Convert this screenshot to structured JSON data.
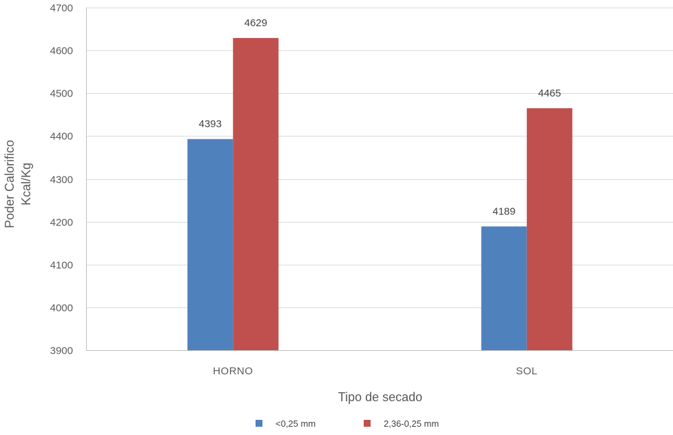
{
  "chart_data": {
    "type": "bar",
    "categories": [
      "HORNO",
      "SOL"
    ],
    "series": [
      {
        "name": "<0,25 mm",
        "values": [
          4393,
          4189
        ],
        "color": "#4f81bd"
      },
      {
        "name": "2,36-0,25 mm",
        "values": [
          4629,
          4465
        ],
        "color": "#c0504d"
      }
    ],
    "xlabel": "Tipo de secado",
    "ylabel_lines": [
      "Poder Calorifico",
      "Kcal/Kg"
    ],
    "ylim": [
      3900,
      4700
    ],
    "yticks": [
      3900,
      4000,
      4100,
      4200,
      4300,
      4400,
      4500,
      4600,
      4700
    ],
    "grid": true,
    "legend_position": "bottom"
  }
}
